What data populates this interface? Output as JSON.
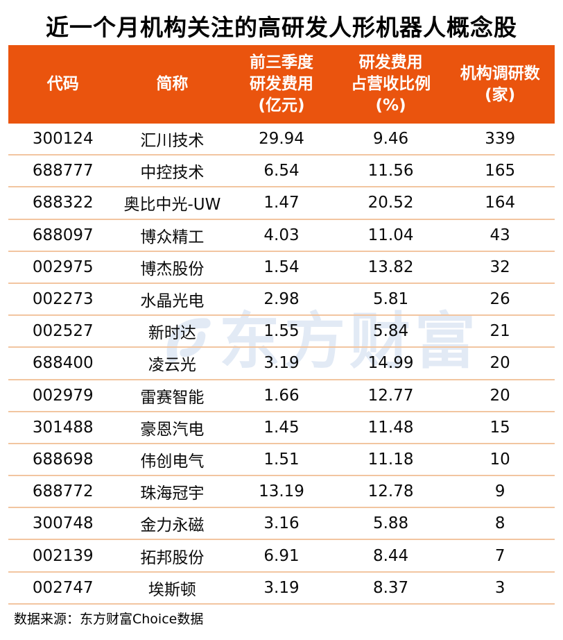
{
  "title": "近一个月机构关注的高研发人形机器人概念股",
  "chart_data": {
    "type": "table",
    "title": "近一个月机构关注的高研发人形机器人概念股",
    "columns": [
      {
        "key": "code",
        "label": "代码"
      },
      {
        "key": "name",
        "label": "简称"
      },
      {
        "key": "rd_expense",
        "label": "前三季度\n研发费用\n(亿元)"
      },
      {
        "key": "rd_ratio",
        "label": "研发费用\n占营收比例\n(%)"
      },
      {
        "key": "survey_count",
        "label": "机构调研数\n(家)"
      }
    ],
    "rows": [
      {
        "code": "300124",
        "name": "汇川技术",
        "rd_expense": "29.94",
        "rd_ratio": "9.46",
        "survey_count": "339"
      },
      {
        "code": "688777",
        "name": "中控技术",
        "rd_expense": "6.54",
        "rd_ratio": "11.56",
        "survey_count": "165"
      },
      {
        "code": "688322",
        "name": "奥比中光-UW",
        "rd_expense": "1.47",
        "rd_ratio": "20.52",
        "survey_count": "164"
      },
      {
        "code": "688097",
        "name": "博众精工",
        "rd_expense": "4.03",
        "rd_ratio": "11.04",
        "survey_count": "43"
      },
      {
        "code": "002975",
        "name": "博杰股份",
        "rd_expense": "1.54",
        "rd_ratio": "13.82",
        "survey_count": "32"
      },
      {
        "code": "002273",
        "name": "水晶光电",
        "rd_expense": "2.98",
        "rd_ratio": "5.81",
        "survey_count": "26"
      },
      {
        "code": "002527",
        "name": "新时达",
        "rd_expense": "1.55",
        "rd_ratio": "5.84",
        "survey_count": "21"
      },
      {
        "code": "688400",
        "name": "凌云光",
        "rd_expense": "3.19",
        "rd_ratio": "14.99",
        "survey_count": "20"
      },
      {
        "code": "002979",
        "name": "雷赛智能",
        "rd_expense": "1.66",
        "rd_ratio": "12.77",
        "survey_count": "20"
      },
      {
        "code": "301488",
        "name": "豪恩汽电",
        "rd_expense": "1.45",
        "rd_ratio": "11.48",
        "survey_count": "15"
      },
      {
        "code": "688698",
        "name": "伟创电气",
        "rd_expense": "1.51",
        "rd_ratio": "11.18",
        "survey_count": "10"
      },
      {
        "code": "688772",
        "name": "珠海冠宇",
        "rd_expense": "13.19",
        "rd_ratio": "12.78",
        "survey_count": "9"
      },
      {
        "code": "300748",
        "name": "金力永磁",
        "rd_expense": "3.16",
        "rd_ratio": "5.88",
        "survey_count": "8"
      },
      {
        "code": "002139",
        "name": "拓邦股份",
        "rd_expense": "6.91",
        "rd_ratio": "8.44",
        "survey_count": "7"
      },
      {
        "code": "002747",
        "name": "埃斯顿",
        "rd_expense": "3.19",
        "rd_ratio": "8.37",
        "survey_count": "3"
      }
    ]
  },
  "watermark": {
    "text": "东方财富",
    "logo": "eastmoney-swirl-icon"
  },
  "footer": {
    "source": "数据来源：东方财富Choice数据"
  },
  "colors": {
    "header_bg": "#EA540E",
    "header_text": "#FFFFFF",
    "row_separator": "#F2C5A0",
    "watermark": "#E2EAF5",
    "text": "#000000"
  }
}
